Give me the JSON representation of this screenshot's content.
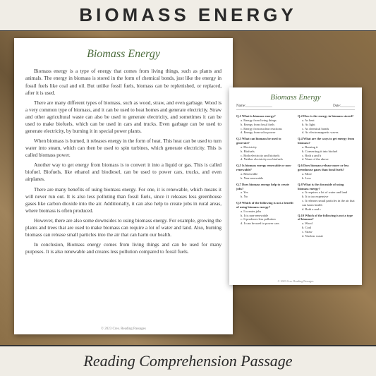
{
  "header": {
    "title": "BIOMASS ENERGY"
  },
  "footer": {
    "title": "Reading  Comprehension Passage"
  },
  "passage": {
    "title": "Biomass Energy",
    "paragraphs": [
      "Biomass energy is a type of energy that comes from living things, such as plants and animals. The energy in biomass is stored in the form of chemical bonds, just like the energy in fossil fuels like coal and oil. But unlike fossil fuels, biomass can be replenished, or replaced, after it is used.",
      "There are many different types of biomass, such as wood, straw, and even garbage. Wood is a very common type of biomass, and it can be used to heat homes and generate electricity. Straw and other agricultural waste can also be used to generate electricity, and sometimes it can be used to make biofuels, which can be used in cars and trucks. Even garbage can be used to generate electricity, by burning it in special power plants.",
      "When biomass is burned, it releases energy in the form of heat. This heat can be used to turn water into steam, which can then be used to spin turbines, which generate electricity. This is called biomass power.",
      "Another way to get energy from biomass is to convert it into a liquid or gas. This is called biofuel. Biofuels, like ethanol and biodiesel, can be used to power cars, trucks, and even airplanes.",
      "There are many benefits of using biomass energy. For one, it is renewable, which means it will never run out. It is also less polluting than fossil fuels, since it releases less greenhouse gases like carbon dioxide into the air. Additionally, it can also help to create jobs in rural areas, where biomass is often produced.",
      "However, there are also some downsides to using biomass energy. For example, growing the plants and trees that are used to make biomass can require a lot of water and land. Also, burning biomass can release small particles into the air that can harm our health.",
      "In conclusion, Biomass energy comes from living things and can be used for many purposes. It is also renewable and creates less pollution compared to fossil fuels."
    ],
    "copyright": "© 2023 Cres. Reading Passages"
  },
  "quiz": {
    "title": "Biomass Energy",
    "name_label": "Name:_______________",
    "date_label": "Date:________",
    "copyright": "© 2023 Cres. Reading Passages",
    "left": [
      {
        "num": "Q.1",
        "text": "What is biomass energy?",
        "opts": [
          "a.  Energy from living things",
          "b.  Energy from fossil fuels",
          "c.  Energy from nuclear reactions",
          "d.  Energy from solar power"
        ]
      },
      {
        "num": "Q.3",
        "text": "What can biomass be used to generate?",
        "opts": [
          "a.  Electricity",
          "b.  Biofuels",
          "c.  Both electricity and biofuels",
          "d.  Neither electricity nor biofuels"
        ]
      },
      {
        "num": "Q.5",
        "text": "Is biomass energy renewable or non-renewable?",
        "opts": [
          "a.  Renewable",
          "b.  Non-renewable"
        ]
      },
      {
        "num": "Q.7",
        "text": "Does biomass energy help to create jobs?",
        "opts": [
          "a.  Yes",
          "b.  No"
        ]
      },
      {
        "num": "Q.9",
        "text": "Which of the following is not a benefit of using biomass energy?",
        "opts": [
          "a.  It creates jobs",
          "b.  It is non-renewable",
          "c.  It produces less pollution",
          "d.  It can be used to power cars"
        ]
      }
    ],
    "right": [
      {
        "num": "Q.2",
        "text": "How is the energy in biomass stored?",
        "opts": [
          "a.  As heat",
          "b.  As light",
          "c.  As chemical bonds",
          "d.  As electromagnetic waves"
        ]
      },
      {
        "num": "Q.4",
        "text": "What are the ways to get energy from biomass?",
        "opts": [
          "a.  Burning it",
          "b.  Converting it into biofuel",
          "c.  Both a and b",
          "d.  None of the above"
        ]
      },
      {
        "num": "Q.6",
        "text": "Does biomass release more or less greenhouse gases than fossil fuels?",
        "opts": [
          "a.  More",
          "b.  Less"
        ]
      },
      {
        "num": "Q.8",
        "text": "What is the downside of using biomass energy?",
        "opts": [
          "a.  It requires a lot of water and land",
          "b.  It is too expensive",
          "c.  It releases small particles in the air that can harm health",
          "d.  Both a and c"
        ]
      },
      {
        "num": "Q.10",
        "text": "Which of the following is not a type of biomass?",
        "opts": [
          "a.  Wood",
          "b.  Coal",
          "c.  Straw",
          "d.  Nuclear waste"
        ]
      }
    ]
  },
  "colors": {
    "background": "#f0ede6",
    "title_green": "#4a6a3a",
    "wood_bg": "#8b6f47"
  }
}
